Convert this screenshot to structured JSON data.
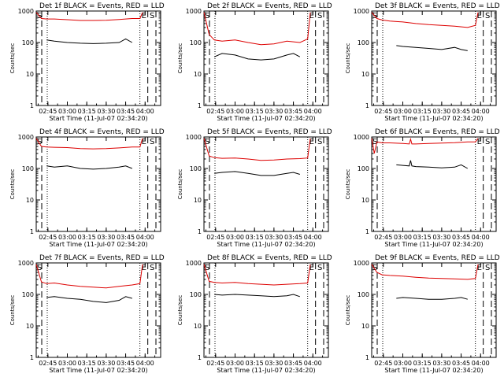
{
  "figure": {
    "xlabel": "Start Time (11-Jul-07 02:34:20)",
    "ylabel": "Counts/sec",
    "marker_labels": {
      "S": "S",
      "E": "E"
    }
  },
  "colors": {
    "events": "#000000",
    "lld": "#dd0000"
  },
  "chart_data": [
    {
      "type": "line",
      "title": "Det 1f BLACK = Events, RED = LLD",
      "yscale": "log",
      "ylim": [
        1,
        1000
      ],
      "ytick_labels": [
        "1",
        "10",
        "100",
        "1000"
      ],
      "xticks": [
        "02:45",
        "03:00",
        "03:15",
        "03:30",
        "03:45",
        "04:00"
      ],
      "markers": {
        "S": "02:36",
        "E": "03:56"
      },
      "series": [
        {
          "name": "BLACK = Events",
          "x": [
            "02:44",
            "02:50",
            "03:00",
            "03:10",
            "03:20",
            "03:30",
            "03:40",
            "03:45",
            "03:50"
          ],
          "y": [
            120,
            110,
            100,
            95,
            92,
            95,
            100,
            130,
            100
          ]
        },
        {
          "name": "RED = LLD",
          "x": [
            "02:36",
            "02:40",
            "02:44",
            "02:50",
            "03:00",
            "03:10",
            "03:20",
            "03:30",
            "03:40",
            "03:50",
            "03:56",
            "03:58"
          ],
          "y": [
            900,
            580,
            560,
            560,
            530,
            500,
            500,
            510,
            540,
            580,
            580,
            900
          ]
        }
      ]
    },
    {
      "type": "line",
      "title": "Det 2f BLACK = Events, RED = LLD",
      "yscale": "log",
      "ylim": [
        1,
        1000
      ],
      "ytick_labels": [
        "1",
        "10",
        "100",
        "1000"
      ],
      "xticks": [
        "02:45",
        "03:00",
        "03:15",
        "03:30",
        "03:45",
        "04:00"
      ],
      "markers": {
        "S": "02:36",
        "E": "03:56"
      },
      "series": [
        {
          "name": "BLACK = Events",
          "x": [
            "02:44",
            "02:50",
            "03:00",
            "03:10",
            "03:20",
            "03:30",
            "03:40",
            "03:45",
            "03:50"
          ],
          "y": [
            35,
            45,
            40,
            30,
            28,
            30,
            40,
            45,
            35
          ]
        },
        {
          "name": "RED = LLD",
          "x": [
            "02:36",
            "02:40",
            "02:44",
            "02:50",
            "03:00",
            "03:10",
            "03:20",
            "03:30",
            "03:40",
            "03:50",
            "03:56",
            "03:58"
          ],
          "y": [
            900,
            180,
            120,
            110,
            120,
            100,
            85,
            90,
            110,
            100,
            130,
            900
          ]
        }
      ]
    },
    {
      "type": "line",
      "title": "Det 3f BLACK = Events, RED = LLD",
      "yscale": "log",
      "ylim": [
        1,
        1000
      ],
      "ytick_labels": [
        "1",
        "10",
        "100",
        "1000"
      ],
      "xticks": [
        "02:45",
        "03:00",
        "03:15",
        "03:30",
        "03:45",
        "04:00"
      ],
      "markers": {
        "S": "02:36",
        "E": "03:56"
      },
      "series": [
        {
          "name": "BLACK = Events",
          "x": [
            "02:55",
            "03:00",
            "03:10",
            "03:20",
            "03:30",
            "03:40",
            "03:45",
            "03:50"
          ],
          "y": [
            80,
            75,
            70,
            65,
            60,
            70,
            60,
            55
          ]
        },
        {
          "name": "RED = LLD",
          "x": [
            "02:36",
            "02:40",
            "02:44",
            "02:50",
            "03:00",
            "03:10",
            "03:20",
            "03:30",
            "03:40",
            "03:50",
            "03:56",
            "03:58"
          ],
          "y": [
            900,
            580,
            520,
            480,
            450,
            400,
            370,
            350,
            330,
            300,
            350,
            900
          ]
        }
      ]
    },
    {
      "type": "line",
      "title": "Det 4f BLACK = Events, RED = LLD",
      "yscale": "log",
      "ylim": [
        1,
        1000
      ],
      "ytick_labels": [
        "1",
        "10",
        "100",
        "1000"
      ],
      "xticks": [
        "02:45",
        "03:00",
        "03:15",
        "03:30",
        "03:45",
        "04:00"
      ],
      "markers": {
        "S": "02:36",
        "E": "03:56"
      },
      "series": [
        {
          "name": "BLACK = Events",
          "x": [
            "02:44",
            "02:50",
            "03:00",
            "03:10",
            "03:20",
            "03:30",
            "03:40",
            "03:45",
            "03:50"
          ],
          "y": [
            120,
            110,
            120,
            100,
            95,
            100,
            110,
            120,
            100
          ]
        },
        {
          "name": "RED = LLD",
          "x": [
            "02:36",
            "02:40",
            "02:44",
            "02:50",
            "03:00",
            "03:10",
            "03:20",
            "03:30",
            "03:40",
            "03:50",
            "03:56",
            "03:58"
          ],
          "y": [
            900,
            500,
            480,
            470,
            460,
            430,
            420,
            430,
            450,
            480,
            480,
            900
          ]
        }
      ]
    },
    {
      "type": "line",
      "title": "Det 5f BLACK = Events, RED = LLD",
      "yscale": "log",
      "ylim": [
        1,
        1000
      ],
      "ytick_labels": [
        "1",
        "10",
        "100",
        "1000"
      ],
      "xticks": [
        "02:45",
        "03:00",
        "03:15",
        "03:30",
        "03:45",
        "04:00"
      ],
      "markers": {
        "S": "02:36",
        "E": "03:56"
      },
      "series": [
        {
          "name": "BLACK = Events",
          "x": [
            "02:44",
            "02:50",
            "03:00",
            "03:10",
            "03:20",
            "03:30",
            "03:40",
            "03:45",
            "03:50"
          ],
          "y": [
            70,
            75,
            80,
            70,
            60,
            60,
            70,
            75,
            65
          ]
        },
        {
          "name": "RED = LLD",
          "x": [
            "02:36",
            "02:40",
            "02:44",
            "02:50",
            "03:00",
            "03:10",
            "03:20",
            "03:30",
            "03:40",
            "03:50",
            "03:56",
            "03:58"
          ],
          "y": [
            900,
            250,
            220,
            210,
            215,
            200,
            180,
            185,
            200,
            205,
            215,
            900
          ]
        }
      ]
    },
    {
      "type": "line",
      "title": "Det 6f BLACK = Events, RED = LLD",
      "yscale": "log",
      "ylim": [
        1,
        1000
      ],
      "ytick_labels": [
        "1",
        "10",
        "100",
        "1000"
      ],
      "xticks": [
        "02:45",
        "03:00",
        "03:15",
        "03:30",
        "03:45",
        "04:00"
      ],
      "markers": {
        "S": "02:36",
        "E": "03:56"
      },
      "series": [
        {
          "name": "BLACK = Events",
          "x": [
            "02:55",
            "03:00",
            "03:05",
            "03:06",
            "03:07",
            "03:10",
            "03:20",
            "03:30",
            "03:40",
            "03:45",
            "03:50"
          ],
          "y": [
            130,
            125,
            120,
            180,
            120,
            115,
            110,
            105,
            110,
            130,
            100
          ]
        },
        {
          "name": "RED = LLD",
          "x": [
            "02:36",
            "02:38",
            "02:40",
            "02:44",
            "02:50",
            "03:00",
            "03:05",
            "03:06",
            "03:07",
            "03:10",
            "03:20",
            "03:30",
            "03:40",
            "03:50",
            "03:56",
            "03:58"
          ],
          "y": [
            900,
            300,
            700,
            650,
            650,
            620,
            600,
            850,
            600,
            600,
            620,
            640,
            660,
            700,
            700,
            900
          ]
        }
      ]
    },
    {
      "type": "line",
      "title": "Det 7f BLACK = Events, RED = LLD",
      "yscale": "log",
      "ylim": [
        1,
        1000
      ],
      "ytick_labels": [
        "1",
        "10",
        "100",
        "1000"
      ],
      "xticks": [
        "02:45",
        "03:00",
        "03:15",
        "03:30",
        "03:45",
        "04:00"
      ],
      "markers": {
        "S": "02:36",
        "E": "03:56"
      },
      "series": [
        {
          "name": "BLACK = Events",
          "x": [
            "02:44",
            "02:50",
            "03:00",
            "03:10",
            "03:20",
            "03:30",
            "03:40",
            "03:45",
            "03:50"
          ],
          "y": [
            80,
            85,
            75,
            70,
            60,
            55,
            65,
            85,
            75
          ]
        },
        {
          "name": "RED = LLD",
          "x": [
            "02:36",
            "02:40",
            "02:44",
            "02:50",
            "03:00",
            "03:10",
            "03:20",
            "03:30",
            "03:40",
            "03:50",
            "03:56",
            "03:58"
          ],
          "y": [
            900,
            250,
            220,
            230,
            200,
            180,
            170,
            160,
            180,
            200,
            220,
            900
          ]
        }
      ]
    },
    {
      "type": "line",
      "title": "Det 8f BLACK = Events, RED = LLD",
      "yscale": "log",
      "ylim": [
        1,
        1000
      ],
      "ytick_labels": [
        "1",
        "10",
        "100",
        "1000"
      ],
      "xticks": [
        "02:45",
        "03:00",
        "03:15",
        "03:30",
        "03:45",
        "04:00"
      ],
      "markers": {
        "S": "02:36",
        "E": "03:56"
      },
      "series": [
        {
          "name": "BLACK = Events",
          "x": [
            "02:44",
            "02:50",
            "03:00",
            "03:10",
            "03:20",
            "03:30",
            "03:40",
            "03:45",
            "03:50"
          ],
          "y": [
            100,
            95,
            100,
            95,
            90,
            85,
            90,
            100,
            85
          ]
        },
        {
          "name": "RED = LLD",
          "x": [
            "02:36",
            "02:40",
            "02:44",
            "02:50",
            "03:00",
            "03:10",
            "03:20",
            "03:30",
            "03:40",
            "03:50",
            "03:56",
            "03:58"
          ],
          "y": [
            900,
            260,
            240,
            230,
            240,
            220,
            210,
            200,
            210,
            220,
            230,
            900
          ]
        }
      ]
    },
    {
      "type": "line",
      "title": "Det 9f BLACK = Events, RED = LLD",
      "yscale": "log",
      "ylim": [
        1,
        1000
      ],
      "ytick_labels": [
        "1",
        "10",
        "100",
        "1000"
      ],
      "xticks": [
        "02:45",
        "03:00",
        "03:15",
        "03:30",
        "03:45",
        "04:00"
      ],
      "markers": {
        "S": "02:36",
        "E": "03:56"
      },
      "series": [
        {
          "name": "BLACK = Events",
          "x": [
            "02:55",
            "03:00",
            "03:10",
            "03:20",
            "03:30",
            "03:40",
            "03:45",
            "03:50"
          ],
          "y": [
            75,
            80,
            75,
            70,
            70,
            75,
            80,
            70
          ]
        },
        {
          "name": "RED = LLD",
          "x": [
            "02:36",
            "02:40",
            "02:44",
            "02:50",
            "03:00",
            "03:10",
            "03:20",
            "03:30",
            "03:40",
            "03:50",
            "03:56",
            "03:58"
          ],
          "y": [
            900,
            500,
            420,
            400,
            380,
            350,
            330,
            320,
            310,
            300,
            320,
            900
          ]
        }
      ]
    }
  ]
}
